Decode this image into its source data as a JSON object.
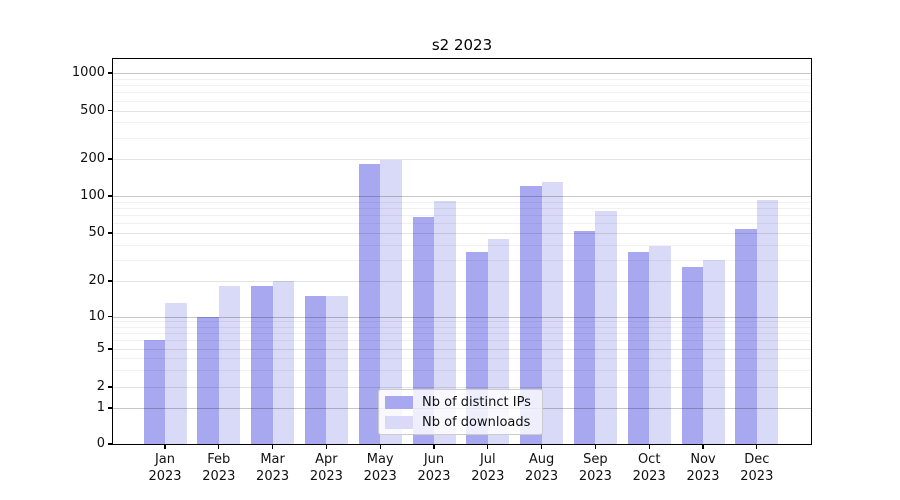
{
  "chart_data": {
    "type": "bar",
    "title": "s2 2023",
    "categories": [
      "Jan",
      "Feb",
      "Mar",
      "Apr",
      "May",
      "Jun",
      "Jul",
      "Aug",
      "Sep",
      "Oct",
      "Nov",
      "Dec"
    ],
    "category_year": "2023",
    "series": [
      {
        "name": "Nb of distinct IPs",
        "color": "#a8a8f0",
        "values": [
          6,
          10,
          18,
          15,
          182,
          67,
          35,
          120,
          52,
          35,
          26,
          54
        ]
      },
      {
        "name": "Nb of downloads",
        "color": "#d9d9f8",
        "values": [
          13,
          18,
          20,
          15,
          196,
          91,
          45,
          130,
          75,
          39,
          30,
          93
        ]
      }
    ],
    "yscale": "log-with-zero",
    "yticks": [
      0,
      1,
      2,
      5,
      10,
      20,
      50,
      100,
      200,
      500,
      1000
    ],
    "yticks_minor": [
      3,
      4,
      6,
      7,
      8,
      9,
      30,
      40,
      60,
      70,
      80,
      90,
      300,
      400,
      600,
      700,
      800,
      900
    ],
    "ylim": [
      0,
      1300
    ],
    "grid": true,
    "legend_position": "lower center",
    "bar_layout": "grouped-pair",
    "colors": {
      "axis": "#000000",
      "grid_major": "#c9c9c9",
      "grid_mid": "#e3e3e3",
      "grid_minor": "#f0f0f0"
    }
  }
}
